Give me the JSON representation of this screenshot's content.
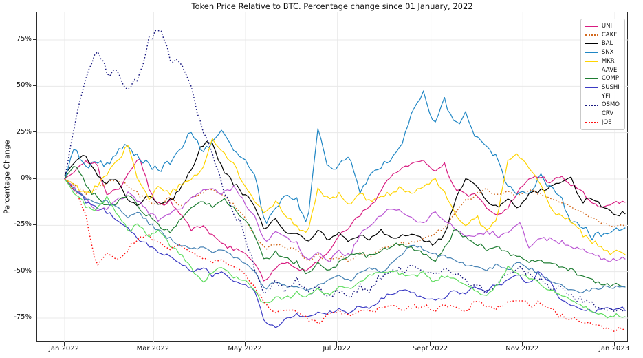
{
  "figure": {
    "title": "Token Price Relative to BTC. Percentage change since 01 January, 2022",
    "ylabel": "Percentage Change"
  },
  "colors": {
    "grid": "#e8e8e8",
    "spine": "#2b2b2b",
    "background": "#ffffff"
  },
  "chart_data": {
    "type": "line",
    "title": "Token Price Relative to BTC. Percentage change since 01 January, 2022",
    "xlabel": "",
    "ylabel": "Percentage Change",
    "grid": true,
    "legend_position": "upper right",
    "x_unit": "days since 2022-01-01 (weekly sample points, step 7 days)",
    "x_range_days": [
      0,
      365
    ],
    "ylim": [
      -88,
      90
    ],
    "y_ticks": [
      {
        "label": "75%",
        "value": 75
      },
      {
        "label": "50%",
        "value": 50
      },
      {
        "label": "25%",
        "value": 25
      },
      {
        "label": "0%",
        "value": 0
      },
      {
        "label": "-25%",
        "value": -25
      },
      {
        "label": "-50%",
        "value": -50
      },
      {
        "label": "-75%",
        "value": -75
      }
    ],
    "x_ticks": [
      {
        "label": "Jan 2022",
        "day": 0
      },
      {
        "label": "Mar 2022",
        "day": 59
      },
      {
        "label": "May 2022",
        "day": 120
      },
      {
        "label": "Jul 2022",
        "day": 181
      },
      {
        "label": "Sept 2022",
        "day": 243
      },
      {
        "label": "Nov 2022",
        "day": 304
      },
      {
        "label": "Jan 2023",
        "day": 365
      }
    ],
    "series": [
      {
        "name": "UNI",
        "color": "#d81b80",
        "style": "solid",
        "wiggle": 1.6,
        "weekly_values": [
          0,
          4,
          10,
          8,
          -8,
          -6,
          2,
          13,
          -5,
          -15,
          -12,
          -20,
          -27,
          -25,
          -30,
          -35,
          -38,
          -40,
          -45,
          -55,
          -48,
          -45,
          -48,
          -50,
          -44,
          -40,
          -30,
          -26,
          -19,
          -15,
          -6,
          3,
          6,
          8,
          10,
          5,
          8,
          -6,
          -8,
          -8,
          -15,
          -20,
          -16,
          -6,
          0,
          1,
          -2,
          1,
          -3,
          -6,
          -13,
          -16,
          -12
        ]
      },
      {
        "name": "CAKE",
        "color": "#d2691e",
        "style": "dotted",
        "wiggle": 1.3,
        "weekly_values": [
          0,
          -3,
          -8,
          -5,
          -2,
          0,
          -4,
          -8,
          -12,
          -14,
          -10,
          -15,
          -10,
          -7,
          -5,
          -8,
          -14,
          -20,
          -30,
          -38,
          -35,
          -37,
          -38,
          -44,
          -41,
          -44,
          -42,
          -44,
          -40,
          -42,
          -38,
          -36,
          -35,
          -34,
          -32,
          -30,
          -26,
          -18,
          -12,
          -8,
          -5,
          -9,
          -7,
          -9,
          -6,
          -8,
          -10,
          -12,
          -15,
          -18,
          -21,
          -24,
          -25
        ]
      },
      {
        "name": "BAL",
        "color": "#000000",
        "style": "solid",
        "wiggle": 1.6,
        "weekly_values": [
          2,
          10,
          13,
          2,
          -2,
          0,
          -12,
          -15,
          -8,
          -14,
          -12,
          -5,
          5,
          18,
          20,
          4,
          -2,
          -8,
          -15,
          -28,
          -22,
          -30,
          -28,
          -35,
          -28,
          -33,
          -29,
          -33,
          -30,
          -32,
          -28,
          -33,
          -31,
          -30,
          -32,
          -35,
          -30,
          -12,
          0,
          -4,
          -12,
          -15,
          -10,
          -16,
          -8,
          -6,
          -4,
          -2,
          1,
          -13,
          -10,
          -15,
          -19
        ]
      },
      {
        "name": "SNX",
        "color": "#1f86c4",
        "style": "solid",
        "wiggle": 2.3,
        "weekly_values": [
          0,
          18,
          6,
          10,
          8,
          15,
          18,
          12,
          8,
          5,
          10,
          15,
          27,
          15,
          20,
          28,
          15,
          10,
          2,
          -25,
          -15,
          -8,
          -12,
          -25,
          27,
          5,
          8,
          11,
          -8,
          2,
          6,
          12,
          20,
          37,
          48,
          30,
          43,
          28,
          35,
          22,
          18,
          10,
          -5,
          -7,
          -8,
          2,
          -4,
          -9,
          -23,
          -26,
          -31,
          -29,
          -27
        ]
      },
      {
        "name": "MKR",
        "color": "#ffd400",
        "style": "solid",
        "wiggle": 1.9,
        "weekly_values": [
          0,
          -4,
          -8,
          -5,
          2,
          10,
          18,
          -2,
          -10,
          -4,
          -8,
          -3,
          0,
          4,
          21,
          15,
          8,
          -3,
          -12,
          -18,
          -12,
          -20,
          -25,
          -30,
          -5,
          -12,
          -8,
          -14,
          -7,
          -12,
          -10,
          -7,
          -5,
          -8,
          -4,
          0,
          -8,
          -18,
          -25,
          -20,
          -28,
          -20,
          10,
          13,
          6,
          -1,
          -15,
          -20,
          -22,
          -29,
          -34,
          -37,
          -40
        ]
      },
      {
        "name": "AAVE",
        "color": "#ba55d3",
        "style": "solid",
        "wiggle": 1.7,
        "weekly_values": [
          0,
          -5,
          -10,
          -18,
          -15,
          -12,
          -8,
          -12,
          -18,
          -22,
          -18,
          -16,
          -10,
          -6,
          -5,
          -8,
          -4,
          -12,
          -20,
          -35,
          -28,
          -32,
          -35,
          -45,
          -40,
          -45,
          -38,
          -42,
          -30,
          -25,
          -20,
          -16,
          -18,
          -22,
          -24,
          -17,
          -22,
          -27,
          -31,
          -31,
          -28,
          -31,
          -30,
          -23,
          -36,
          -32,
          -33,
          -34,
          -36,
          -38,
          -41,
          -43,
          -43
        ]
      },
      {
        "name": "COMP",
        "color": "#1e7d32",
        "style": "solid",
        "wiggle": 1.6,
        "weekly_values": [
          0,
          8,
          -3,
          -10,
          -14,
          -13,
          -8,
          -15,
          -20,
          -25,
          -28,
          -22,
          -15,
          -12,
          -14,
          -11,
          -16,
          -22,
          -30,
          -45,
          -40,
          -43,
          -45,
          -52,
          -45,
          -50,
          -45,
          -42,
          -40,
          -42,
          -38,
          -36,
          -35,
          -38,
          -40,
          -44,
          -38,
          -27,
          -32,
          -35,
          -38,
          -36,
          -40,
          -41,
          -45,
          -44,
          -46,
          -47,
          -49,
          -52,
          -54,
          -57,
          -57
        ]
      },
      {
        "name": "SUSHI",
        "color": "#3b3bc4",
        "style": "solid",
        "wiggle": 1.5,
        "weekly_values": [
          0,
          -6,
          -12,
          -15,
          -18,
          -22,
          -27,
          -32,
          -36,
          -40,
          -42,
          -45,
          -50,
          -48,
          -52,
          -50,
          -55,
          -57,
          -60,
          -78,
          -80,
          -75,
          -73,
          -74,
          -72,
          -73,
          -70,
          -72,
          -68,
          -70,
          -65,
          -62,
          -60,
          -62,
          -64,
          -66,
          -64,
          -60,
          -62,
          -58,
          -60,
          -57,
          -55,
          -51,
          -57,
          -50,
          -55,
          -65,
          -68,
          -70,
          -72,
          -70,
          -70
        ]
      },
      {
        "name": "YFI",
        "color": "#4682b4",
        "style": "solid",
        "wiggle": 1.4,
        "weekly_values": [
          0,
          -6,
          -10,
          -14,
          -12,
          -16,
          -20,
          -18,
          -24,
          -28,
          -32,
          -36,
          -38,
          -36,
          -40,
          -38,
          -42,
          -45,
          -50,
          -60,
          -55,
          -57,
          -58,
          -60,
          -57,
          -55,
          -52,
          -55,
          -50,
          -48,
          -50,
          -45,
          -40,
          -35,
          -38,
          -41,
          -42,
          -44,
          -46,
          -47,
          -49,
          -46,
          -49,
          -45,
          -48,
          -51,
          -55,
          -57,
          -59,
          -61,
          -60,
          -58,
          -58
        ]
      },
      {
        "name": "OSMO",
        "color": "#191980",
        "style": "dotted",
        "wiggle": 2.6,
        "weekly_values": [
          0,
          30,
          55,
          70,
          58,
          57,
          48,
          55,
          75,
          82,
          66,
          62,
          50,
          28,
          14,
          -5,
          -18,
          -28,
          -48,
          -63,
          -55,
          -60,
          -55,
          -62,
          -58,
          -65,
          -60,
          -63,
          -58,
          -60,
          -52,
          -48,
          -50,
          -46,
          -50,
          -52,
          -48,
          -51,
          -55,
          -58,
          -60,
          -57,
          -52,
          -47,
          -52,
          -54,
          -58,
          -60,
          -62,
          -65,
          -67,
          -69,
          -70
        ]
      },
      {
        "name": "CRV",
        "color": "#5fdd5f",
        "style": "solid",
        "wiggle": 1.8,
        "weekly_values": [
          0,
          -8,
          -14,
          -17,
          -10,
          -20,
          -28,
          -24,
          -30,
          -28,
          -35,
          -40,
          -48,
          -56,
          -50,
          -47,
          -52,
          -55,
          -60,
          -68,
          -63,
          -65,
          -62,
          -64,
          -60,
          -62,
          -58,
          -60,
          -55,
          -52,
          -50,
          -49,
          -52,
          -53,
          -50,
          -56,
          -52,
          -54,
          -57,
          -60,
          -63,
          -58,
          -48,
          -50,
          -54,
          -56,
          -60,
          -63,
          -66,
          -69,
          -72,
          -74,
          -74
        ]
      },
      {
        "name": "JOE",
        "color": "#ff1111",
        "style": "dotted",
        "wiggle": 1.7,
        "weekly_values": [
          0,
          -6,
          -20,
          -48,
          -40,
          -44,
          -38,
          -32,
          -30,
          -35,
          -38,
          -35,
          -40,
          -42,
          -45,
          -44,
          -48,
          -50,
          -58,
          -68,
          -72,
          -70,
          -72,
          -75,
          -78,
          -73,
          -72,
          -74,
          -70,
          -72,
          -70,
          -68,
          -70,
          -69,
          -68,
          -70,
          -69,
          -68,
          -71,
          -66,
          -68,
          -70,
          -66,
          -65,
          -68,
          -67,
          -70,
          -74,
          -76,
          -76,
          -78,
          -80,
          -81
        ]
      }
    ]
  }
}
